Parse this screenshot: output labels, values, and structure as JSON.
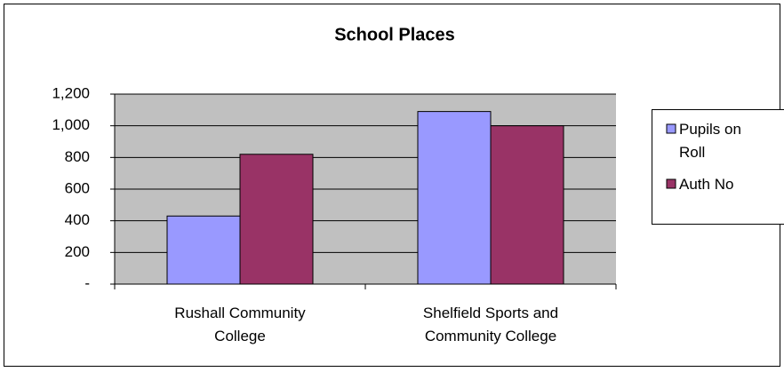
{
  "chart_data": {
    "type": "bar",
    "title": "School Places",
    "categories": [
      "Rushall Community College",
      "Shelfield Sports and Community College"
    ],
    "series": [
      {
        "name": "Pupils on Roll",
        "color": "#9999ff",
        "values": [
          430,
          1090
        ]
      },
      {
        "name": "Auth No",
        "color": "#993366",
        "values": [
          820,
          1000
        ]
      }
    ],
    "ylim": [
      0,
      1200
    ],
    "yticks": [
      {
        "value": 0,
        "label": "-"
      },
      200,
      400,
      600,
      800,
      {
        "value": 1000,
        "label": "1,000"
      },
      {
        "value": 1200,
        "label": "1,200"
      }
    ],
    "grid": true,
    "legend": "right"
  }
}
